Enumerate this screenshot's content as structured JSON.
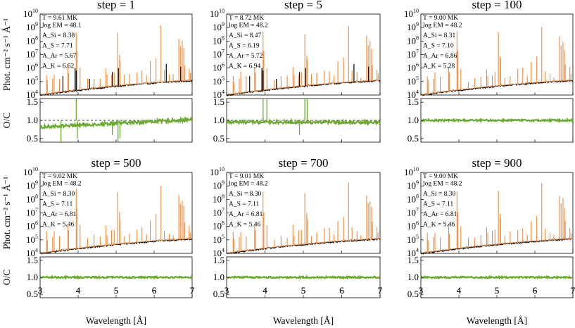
{
  "figure": {
    "xlabel": "Wavelength [Å]",
    "ylabel_flux": "Phot. cm⁻² s⁻¹ Å⁻¹",
    "ylabel_ratio": "O/C",
    "colors": {
      "observed": "#000000",
      "model": "#f28a3c",
      "ratio": "#6aab2e",
      "reference": "#000000"
    }
  },
  "chart_data": [
    {
      "type": "line",
      "title": "step = 1",
      "annotations": [
        "T = 9.61 MK",
        "log EM = 48.1",
        "A_Si = 8.38",
        "A_S = 7.71",
        "A_Ar = 5.67",
        "A_K = 6.62"
      ],
      "xlim": [
        3,
        7
      ],
      "ylim_flux": [
        10000.0,
        10000000000.0
      ],
      "ylim_ratio": [
        0.4,
        1.6
      ],
      "log_y": true,
      "xticks": [
        3,
        4,
        5,
        6,
        7
      ]
    },
    {
      "type": "line",
      "title": "step = 5",
      "annotations": [
        "T = 8.72 MK",
        "log EM = 48.2",
        "A_Si = 8.47",
        "A_S = 6.19",
        "A_Ar = 5.72",
        "A_K = 6.94"
      ],
      "xlim": [
        3,
        7
      ],
      "ylim_flux": [
        10000.0,
        10000000000.0
      ],
      "ylim_ratio": [
        0.4,
        1.6
      ],
      "log_y": true,
      "xticks": [
        3,
        4,
        5,
        6,
        7
      ]
    },
    {
      "type": "line",
      "title": "step = 100",
      "annotations": [
        "T = 9.00 MK",
        "log EM = 48.2",
        "A_Si = 8.31",
        "A_S = 7.10",
        "A_Ar = 6.86",
        "A_K = 5.28"
      ],
      "xlim": [
        3,
        7
      ],
      "ylim_flux": [
        10000.0,
        10000000000.0
      ],
      "ylim_ratio": [
        0.4,
        1.6
      ],
      "log_y": true,
      "xticks": [
        3,
        4,
        5,
        6,
        7
      ]
    },
    {
      "type": "line",
      "title": "step = 500",
      "annotations": [
        "T = 9.02 MK",
        "log EM = 48.2",
        "A_Si = 8.30",
        "A_S = 7.11",
        "A_Ar = 6.81",
        "A_K = 5.46"
      ],
      "xlim": [
        3,
        7
      ],
      "ylim_flux": [
        10000.0,
        10000000000.0
      ],
      "ylim_ratio": [
        0.4,
        1.6
      ],
      "log_y": true,
      "xticks": [
        3,
        4,
        5,
        6,
        7
      ]
    },
    {
      "type": "line",
      "title": "step = 700",
      "annotations": [
        "T = 9.01 MK",
        "log EM = 48.2",
        "A_Si = 8.30",
        "A_S = 7.11",
        "A_Ar = 6.81",
        "A_K = 5.46"
      ],
      "xlim": [
        3,
        7
      ],
      "ylim_flux": [
        10000.0,
        10000000000.0
      ],
      "ylim_ratio": [
        0.4,
        1.6
      ],
      "log_y": true,
      "xticks": [
        3,
        4,
        5,
        6,
        7
      ]
    },
    {
      "type": "line",
      "title": "step = 900",
      "annotations": [
        "T = 9.00 MK",
        "log EM = 48.2",
        "A_Si = 8.30",
        "A_S = 7.11",
        "A_Ar = 6.81",
        "A_K = 5.46"
      ],
      "xlim": [
        3,
        7
      ],
      "ylim_flux": [
        10000.0,
        10000000000.0
      ],
      "ylim_ratio": [
        0.4,
        1.6
      ],
      "log_y": true,
      "xticks": [
        3,
        4,
        5,
        6,
        7
      ]
    }
  ]
}
